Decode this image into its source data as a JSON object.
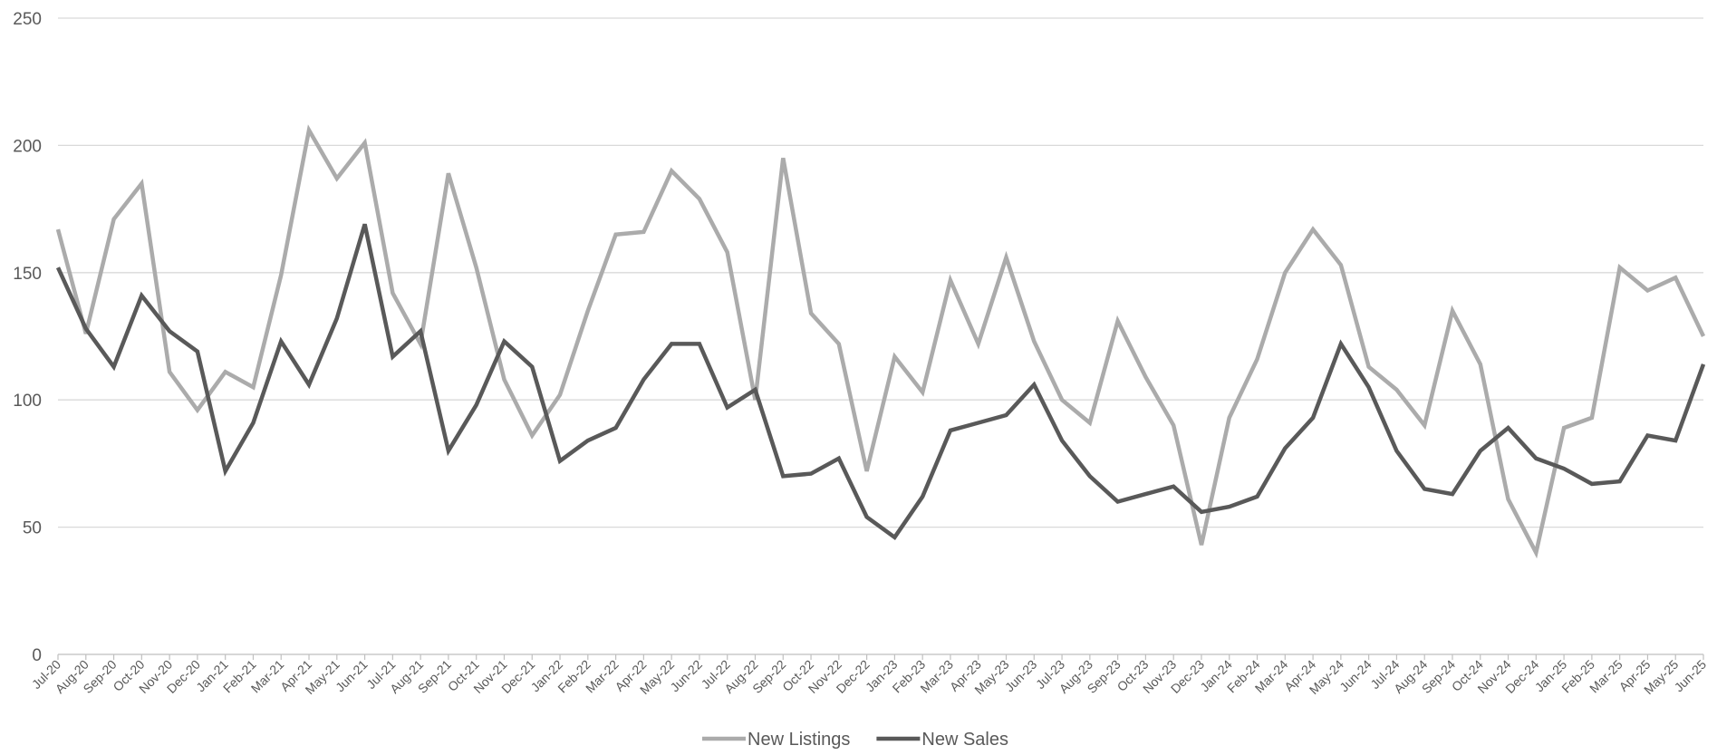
{
  "chart_data": {
    "type": "line",
    "title": "",
    "xlabel": "",
    "ylabel": "",
    "ylim": [
      0,
      250
    ],
    "yticks": [
      0,
      50,
      100,
      150,
      200,
      250
    ],
    "grid": true,
    "legend_position": "bottom",
    "categories": [
      "Jul-20",
      "Aug-20",
      "Sep-20",
      "Oct-20",
      "Nov-20",
      "Dec-20",
      "Jan-21",
      "Feb-21",
      "Mar-21",
      "Apr-21",
      "May-21",
      "Jun-21",
      "Jul-21",
      "Aug-21",
      "Sep-21",
      "Oct-21",
      "Nov-21",
      "Dec-21",
      "Jan-22",
      "Feb-22",
      "Mar-22",
      "Apr-22",
      "May-22",
      "Jun-22",
      "Jul-22",
      "Aug-22",
      "Sep-22",
      "Oct-22",
      "Nov-22",
      "Dec-22",
      "Jan-23",
      "Feb-23",
      "Mar-23",
      "Apr-23",
      "May-23",
      "Jun-23",
      "Jul-23",
      "Aug-23",
      "Sep-23",
      "Oct-23",
      "Nov-23",
      "Dec-23",
      "Jan-24",
      "Feb-24",
      "Mar-24",
      "Apr-24",
      "May-24",
      "Jun-24",
      "Jul-24",
      "Aug-24",
      "Sep-24",
      "Oct-24",
      "Nov-24",
      "Dec-24",
      "Jan-25",
      "Feb-25",
      "Mar-25",
      "Apr-25",
      "May-25",
      "Jun-25"
    ],
    "series": [
      {
        "name": "New Listings",
        "color": "#ababab",
        "values": [
          167,
          126,
          171,
          185,
          111,
          96,
          111,
          105,
          149,
          206,
          187,
          201,
          142,
          122,
          189,
          152,
          108,
          86,
          102,
          135,
          165,
          166,
          190,
          179,
          158,
          100,
          195,
          134,
          122,
          72,
          117,
          103,
          147,
          122,
          156,
          123,
          100,
          91,
          131,
          109,
          90,
          43,
          93,
          116,
          150,
          167,
          153,
          113,
          104,
          90,
          135,
          114,
          61,
          40,
          89,
          93,
          152,
          143,
          148,
          125
        ]
      },
      {
        "name": "New Sales",
        "color": "#595959",
        "values": [
          152,
          128,
          113,
          141,
          127,
          119,
          72,
          91,
          123,
          106,
          132,
          169,
          117,
          127,
          80,
          98,
          123,
          113,
          76,
          84,
          89,
          108,
          122,
          122,
          97,
          104,
          70,
          71,
          77,
          54,
          46,
          62,
          88,
          91,
          94,
          106,
          84,
          70,
          60,
          63,
          66,
          56,
          58,
          62,
          81,
          93,
          122,
          105,
          80,
          65,
          63,
          80,
          89,
          77,
          73,
          67,
          68,
          86,
          84,
          114
        ]
      }
    ]
  }
}
